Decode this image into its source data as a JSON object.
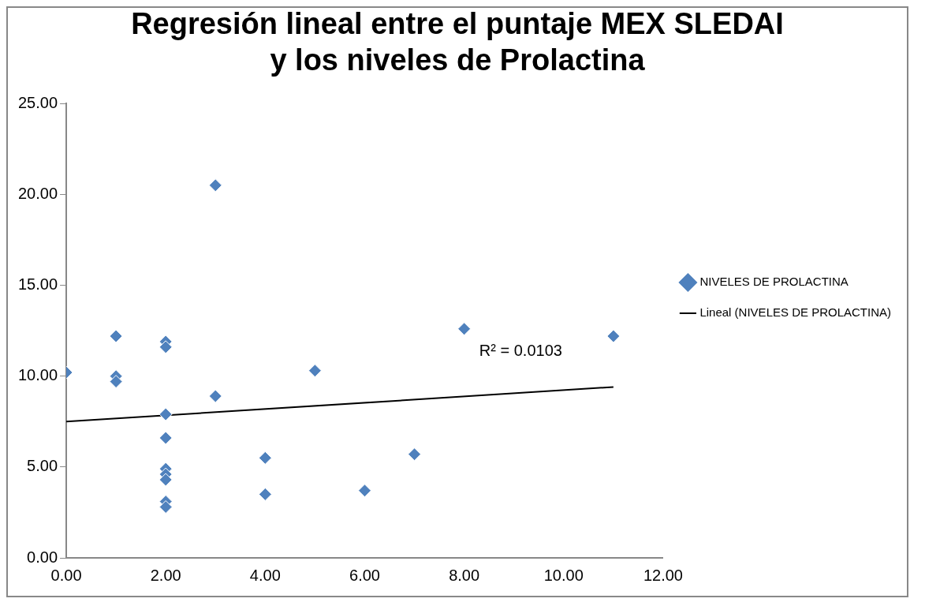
{
  "chart_data": {
    "type": "scatter",
    "title": "Regresión lineal entre el puntaje MEX SLEDAI\ny los niveles de Prolactina",
    "x": [
      0,
      1,
      1,
      1,
      2,
      2,
      2,
      2,
      2,
      2,
      2,
      2,
      2,
      3,
      3,
      4,
      4,
      5,
      6,
      7,
      8,
      11
    ],
    "series": [
      {
        "name": "NIVELES DE PROLACTINA",
        "color": "#4f81bd",
        "marker": "diamond",
        "values": [
          10.2,
          12.2,
          10.0,
          9.7,
          11.9,
          11.6,
          7.9,
          6.6,
          4.9,
          4.6,
          4.3,
          3.1,
          2.8,
          20.5,
          8.9,
          5.5,
          3.5,
          10.3,
          3.7,
          5.7,
          12.6,
          12.2
        ]
      },
      {
        "name": "Lineal (NIVELES DE PROLACTINA)",
        "type": "line",
        "color": "#000000",
        "marker": "none",
        "line_style": "solid",
        "x": [
          0,
          11
        ],
        "values": [
          7.5,
          9.4
        ]
      }
    ],
    "annotations": [
      "R² = 0.0103"
    ],
    "xlim": [
      0,
      12
    ],
    "xticks": [
      {
        "value": 0,
        "label": "0.00"
      },
      {
        "value": 2,
        "label": "2.00"
      },
      {
        "value": 4,
        "label": "4.00"
      },
      {
        "value": 6,
        "label": "6.00"
      },
      {
        "value": 8,
        "label": "8.00"
      },
      {
        "value": 10,
        "label": "10.00"
      },
      {
        "value": 12,
        "label": "12.00"
      }
    ],
    "ylim": [
      0,
      25
    ],
    "yticks": [
      {
        "value": 0,
        "label": "0.00"
      },
      {
        "value": 5,
        "label": "5.00"
      },
      {
        "value": 10,
        "label": "10.00"
      },
      {
        "value": 15,
        "label": "15.00"
      },
      {
        "value": 20,
        "label": "20.00"
      },
      {
        "value": 25,
        "label": "25.00"
      }
    ],
    "grid": false,
    "legend": "right"
  }
}
